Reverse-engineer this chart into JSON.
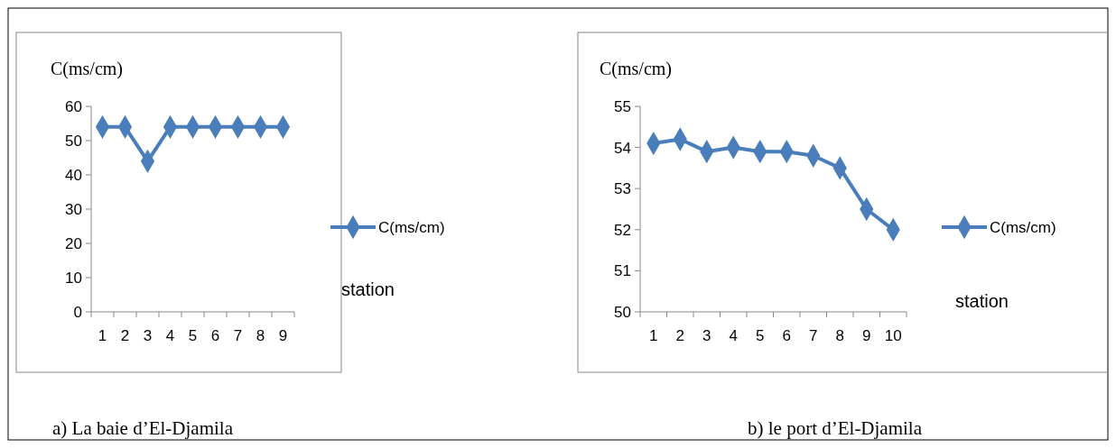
{
  "chart_data": [
    {
      "type": "line",
      "title": "a)   La baie d’El-Djamila",
      "ylabel": "C(ms/cm)",
      "xlabel": "station",
      "categories": [
        "1",
        "2",
        "3",
        "4",
        "5",
        "6",
        "7",
        "8",
        "9"
      ],
      "series": [
        {
          "name": "C(ms/cm)",
          "color": "#4a7ebb",
          "values": [
            54,
            54,
            44,
            54,
            54,
            54,
            54,
            54,
            54
          ]
        }
      ],
      "ylim": [
        0,
        60
      ],
      "yticks": [
        0,
        10,
        20,
        30,
        40,
        50,
        60
      ],
      "legend": "right",
      "marker": "diamond",
      "grid": false
    },
    {
      "type": "line",
      "title": "b)  le port d’El-Djamila",
      "ylabel": "C(ms/cm)",
      "xlabel": "station",
      "categories": [
        "1",
        "2",
        "3",
        "4",
        "5",
        "6",
        "7",
        "8",
        "9",
        "10"
      ],
      "series": [
        {
          "name": "C(ms/cm)",
          "color": "#4a7ebb",
          "values": [
            54.1,
            54.2,
            53.9,
            54.0,
            53.9,
            53.9,
            53.8,
            53.5,
            52.5,
            52.0
          ]
        }
      ],
      "ylim": [
        50,
        55
      ],
      "yticks": [
        50,
        51,
        52,
        53,
        54,
        55
      ],
      "legend": "right",
      "marker": "diamond",
      "grid": false
    }
  ]
}
